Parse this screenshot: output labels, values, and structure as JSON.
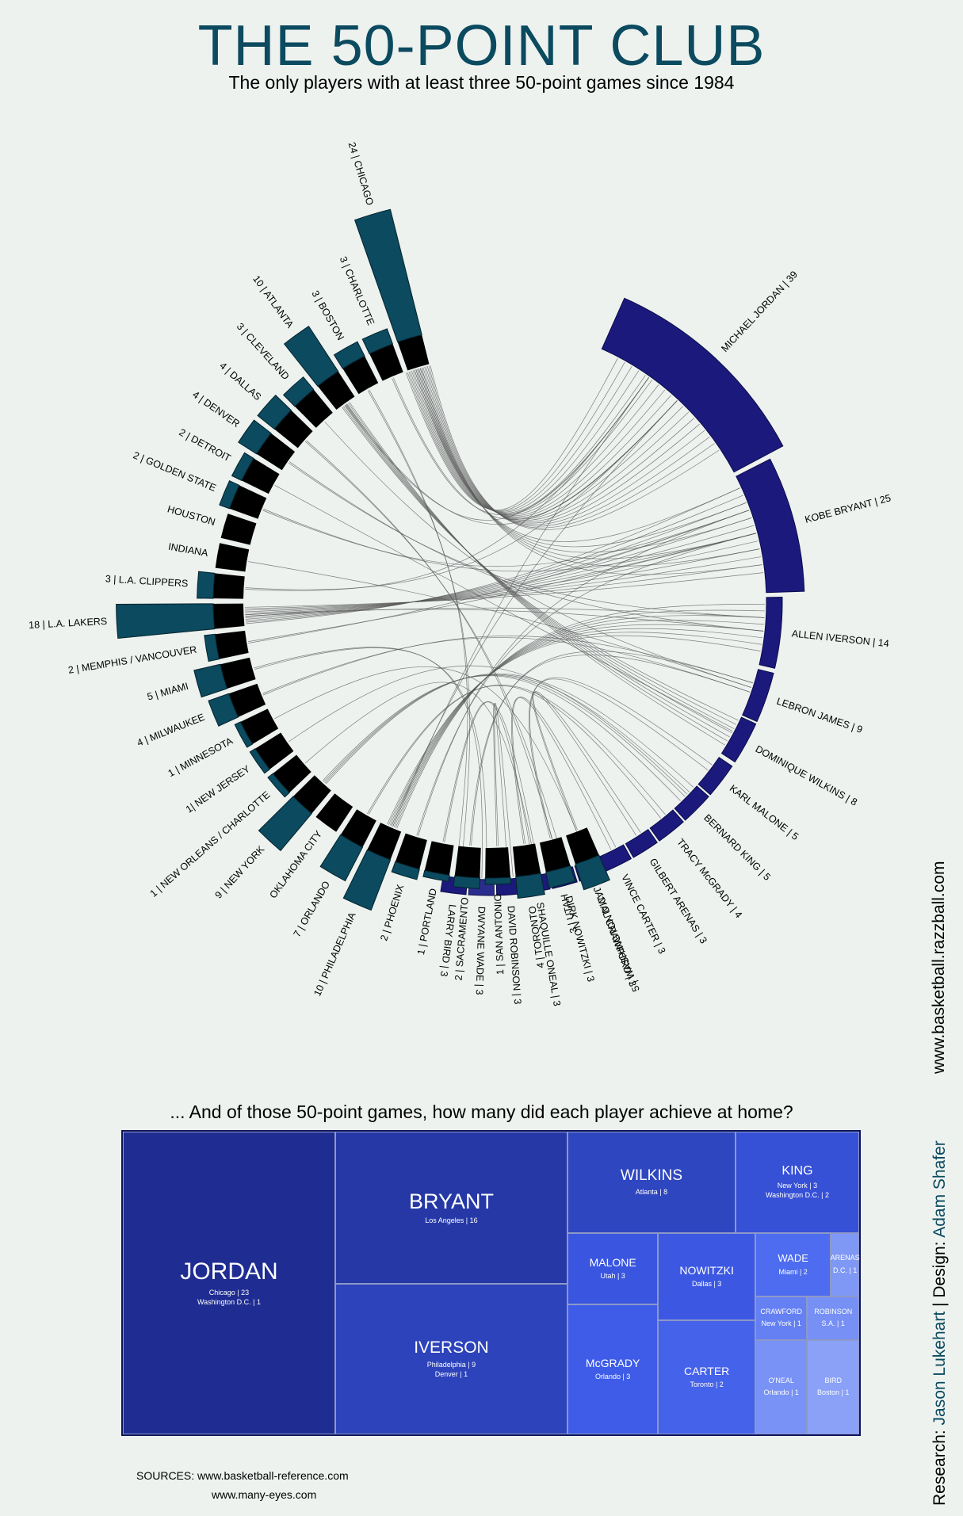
{
  "title": "THE 50-POINT CLUB",
  "subtitle": "The only players with at least three 50-point games since 1984",
  "credit": {
    "url": "www.basketball.razzball.com",
    "research_label": "Research:",
    "research_name": "Jason Lukehart",
    "design_label": "Design:",
    "design_name": "Adam Shafer",
    "separator": "|"
  },
  "question": "... And of those 50-point games, how many did each player achieve at home?",
  "sources": {
    "line1": "SOURCES: www.basketball-reference.com",
    "line2": "www.many-eyes.com"
  },
  "colors": {
    "team": "#0b4a5f",
    "team_base": "#000000",
    "player": "#1b1a7c",
    "player_alt": "#2a2d8e",
    "treemap_bg": "#1f2b94",
    "background": "#edf2ef",
    "chords": "#555555"
  },
  "chart_data": [
    {
      "type": "chord",
      "title": "THE 50-POINT CLUB",
      "teams": [
        {
          "label": "24 |  CHICAGO",
          "value": 24
        },
        {
          "label": "3 |  CHARLOTTE",
          "value": 3
        },
        {
          "label": "3 |  BOSTON",
          "value": 3
        },
        {
          "label": "10 |  ATLANTA",
          "value": 10
        },
        {
          "label": "3 |  CLEVELAND",
          "value": 3
        },
        {
          "label": "4 |  DALLAS",
          "value": 4
        },
        {
          "label": "4 |  DENVER",
          "value": 4
        },
        {
          "label": "2 |  DETROIT",
          "value": 2
        },
        {
          "label": "2 |  GOLDEN STATE",
          "value": 2
        },
        {
          "label": "HOUSTON",
          "value": 0
        },
        {
          "label": "INDIANA",
          "value": 0
        },
        {
          "label": "3 |  L.A. CLIPPERS",
          "value": 3
        },
        {
          "label": "18 |  L.A. LAKERS",
          "value": 18
        },
        {
          "label": "2 |  MEMPHIS / VANCOUVER",
          "value": 2
        },
        {
          "label": "5 |  MIAMI",
          "value": 5
        },
        {
          "label": "4 |  MILWAUKEE",
          "value": 4
        },
        {
          "label": "1 |  MINNESOTA",
          "value": 1
        },
        {
          "label": "1|  NEW JERSEY",
          "value": 1
        },
        {
          "label": "1 |  NEW ORLEANS / CHARLOTTE",
          "value": 1
        },
        {
          "label": "9 |  NEW YORK",
          "value": 9
        },
        {
          "label": "OKLAHOMA CITY",
          "value": 0
        },
        {
          "label": "7 |  ORLANDO",
          "value": 7
        },
        {
          "label": "10 |  PHILADELPHIA",
          "value": 10
        },
        {
          "label": "2 |  PHOENIX",
          "value": 2
        },
        {
          "label": "1 |  PORTLAND",
          "value": 1
        },
        {
          "label": "2 |  SACRAMENTO",
          "value": 2
        },
        {
          "label": "1 |  SAN ANTONIO",
          "value": 1
        },
        {
          "label": "4 |  TORONTO",
          "value": 4
        },
        {
          "label": "3 |  UTAH",
          "value": 3
        },
        {
          "label": "5 |  WASHINGTON D.C.",
          "value": 5
        }
      ],
      "players": [
        {
          "label": "MICHAEL JORDAN | 39",
          "value": 39
        },
        {
          "label": "KOBE BRYANT | 25",
          "value": 25
        },
        {
          "label": "ALLEN IVERSON | 14",
          "value": 14
        },
        {
          "label": "LEBRON JAMES | 9",
          "value": 9
        },
        {
          "label": "DOMINIQUE WILKINS | 8",
          "value": 8
        },
        {
          "label": "KARL MALONE | 5",
          "value": 5
        },
        {
          "label": "BERNARD KING | 5",
          "value": 5
        },
        {
          "label": "TRACY McGRADY | 4",
          "value": 4
        },
        {
          "label": "GILBERT ARENAS | 3",
          "value": 3
        },
        {
          "label": "VINCE CARTER | 3",
          "value": 3
        },
        {
          "label": "JAMAL CRAWFORD | 3",
          "value": 3
        },
        {
          "label": "DIRK NOWITZKI | 3",
          "value": 3
        },
        {
          "label": "SHAQUILLE ONEAL | 3",
          "value": 3
        },
        {
          "label": "DAVID ROBINSON | 3",
          "value": 3
        },
        {
          "label": "DWYANE WADE | 3",
          "value": 3
        },
        {
          "label": "LARRY BIRD | 3",
          "value": 3
        }
      ]
    },
    {
      "type": "treemap",
      "title": "... And of those 50-point games, how many did each player achieve at home?",
      "cells": [
        {
          "name": "JORDAN",
          "details": [
            "Chicago | 23",
            "Washington D.C. | 1"
          ],
          "value": 24
        },
        {
          "name": "BRYANT",
          "details": [
            "Los Angeles | 16"
          ],
          "value": 16
        },
        {
          "name": "IVERSON",
          "details": [
            "Philadelphia | 9",
            "Denver | 1"
          ],
          "value": 10
        },
        {
          "name": "WILKINS",
          "details": [
            "Atlanta | 8"
          ],
          "value": 8
        },
        {
          "name": "KING",
          "details": [
            "New York | 3",
            "Washington D.C. | 2"
          ],
          "value": 5
        },
        {
          "name": "MALONE",
          "details": [
            "Utah | 3"
          ],
          "value": 3
        },
        {
          "name": "NOWITZKI",
          "details": [
            "Dallas | 3"
          ],
          "value": 3
        },
        {
          "name": "McGRADY",
          "details": [
            "Orlando | 3"
          ],
          "value": 3
        },
        {
          "name": "CARTER",
          "details": [
            "Toronto | 2"
          ],
          "value": 2
        },
        {
          "name": "WADE",
          "details": [
            "Miami | 2"
          ],
          "value": 2
        },
        {
          "name": "ARENAS",
          "details": [
            "D.C. | 1"
          ],
          "value": 1
        },
        {
          "name": "CRAWFORD",
          "details": [
            "New York | 1"
          ],
          "value": 1
        },
        {
          "name": "ROBINSON",
          "details": [
            "S.A.     | 1"
          ],
          "value": 1
        },
        {
          "name": "O'NEAL",
          "details": [
            "Orlando | 1"
          ],
          "value": 1
        },
        {
          "name": "BIRD",
          "details": [
            "Boston | 1"
          ],
          "value": 1
        }
      ]
    }
  ]
}
